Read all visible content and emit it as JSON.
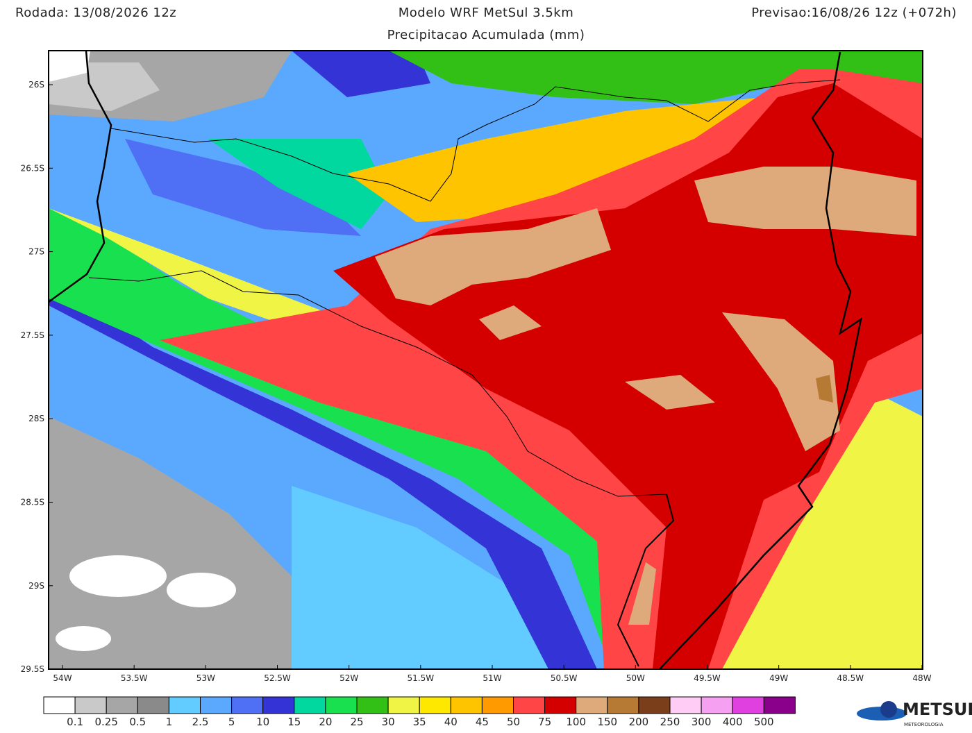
{
  "header": {
    "run": "Rodada: 13/08/2026 12z",
    "title": "Modelo WRF MetSul 3.5km",
    "subtitle": "Precipitacao Acumulada (mm)",
    "forecast": "Previsao:16/08/26 12z (+072h)"
  },
  "axes": {
    "lat": [
      "26S",
      "26.5S",
      "27S",
      "27.5S",
      "28S",
      "28.5S",
      "29S",
      "29.5S"
    ],
    "lon": [
      "54W",
      "53.5W",
      "53W",
      "52.5W",
      "52W",
      "51.5W",
      "51W",
      "50.5W",
      "50W",
      "49.5W",
      "49W",
      "48.5W",
      "48W"
    ]
  },
  "colorbar": {
    "labels": [
      "0.1",
      "0.25",
      "0.5",
      "1",
      "2.5",
      "5",
      "10",
      "15",
      "20",
      "25",
      "30",
      "35",
      "40",
      "45",
      "50",
      "75",
      "100",
      "150",
      "200",
      "250",
      "300",
      "400",
      "500"
    ],
    "colors": [
      "#ffffff",
      "#c9c9c9",
      "#a6a6a6",
      "#8a8a8a",
      "#62cbff",
      "#5aa9ff",
      "#4f6ff5",
      "#3333d6",
      "#00d8a0",
      "#19e04e",
      "#33c016",
      "#f0f545",
      "#ffe800",
      "#ffc400",
      "#ff9a00",
      "#ff4545",
      "#d40000",
      "#deaa7c",
      "#b67a34",
      "#7a3f1a",
      "#ffccf5",
      "#f5a0f0",
      "#e040e0",
      "#8a008a"
    ]
  },
  "logo": {
    "name": "METSUL",
    "tagline": "METEOROLOGIA"
  }
}
